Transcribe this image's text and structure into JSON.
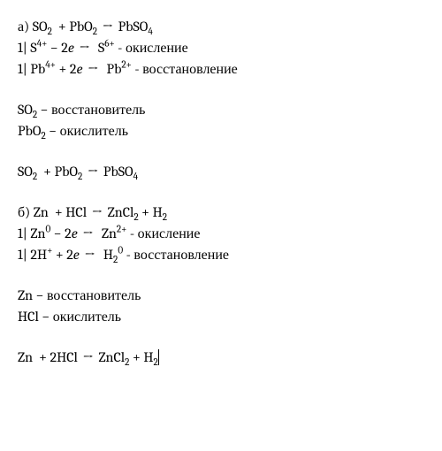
{
  "font_family": "Cambria, Georgia, serif",
  "font_size_pt": 12,
  "text_color": "#000000",
  "background_color": "#ffffff",
  "symbols": {
    "arrow": "→",
    "minus": "−",
    "plus": "+",
    "pipe": "|",
    "electron": "e"
  },
  "problems": [
    {
      "label": "а)",
      "equation_unbalanced": {
        "reactants": [
          {
            "formula": "SO",
            "sub": "2"
          },
          {
            "formula": "PbO",
            "sub": "2"
          }
        ],
        "products": [
          {
            "formula": "PbSO",
            "sub": "4"
          }
        ]
      },
      "half_reactions": [
        {
          "coef": "1",
          "left": {
            "element": "S",
            "charge": "4+"
          },
          "op": "−",
          "e_count": "2",
          "right": {
            "element": "S",
            "charge": "6+"
          },
          "process": "окисление"
        },
        {
          "coef": "1",
          "left": {
            "element": "Pb",
            "charge": "4+"
          },
          "op": "+",
          "e_count": "2",
          "right": {
            "element": "Pb",
            "charge": "2+"
          },
          "process": "восстановление"
        }
      ],
      "reducer": {
        "formula": "SO",
        "sub": "2",
        "role": "восстановитель"
      },
      "oxidizer": {
        "formula": "PbO",
        "sub": "2",
        "role": "окислитель"
      },
      "equation_balanced": {
        "reactants": [
          {
            "coef": "",
            "formula": "SO",
            "sub": "2"
          },
          {
            "coef": "",
            "formula": "PbO",
            "sub": "2"
          }
        ],
        "products": [
          {
            "coef": "",
            "formula": "PbSO",
            "sub": "4"
          }
        ]
      }
    },
    {
      "label": "б)",
      "equation_unbalanced": {
        "reactants": [
          {
            "formula": "Zn"
          },
          {
            "formula": "HCl"
          }
        ],
        "products": [
          {
            "formula": "ZnCl",
            "sub": "2"
          },
          {
            "formula": "H",
            "sub": "2"
          }
        ]
      },
      "half_reactions": [
        {
          "coef": "1",
          "left": {
            "element": "Zn",
            "charge": "0"
          },
          "op": "−",
          "e_count": "2",
          "right": {
            "element": "Zn",
            "charge": "2+"
          },
          "process": "окисление"
        },
        {
          "coef": "1",
          "left": {
            "element": "2H",
            "charge": "+"
          },
          "op": "+",
          "e_count": "2",
          "right": {
            "element": "H",
            "sub": "2",
            "charge": "0"
          },
          "process": "восстановление"
        }
      ],
      "reducer": {
        "formula": "Zn",
        "role": "восстановитель"
      },
      "oxidizer": {
        "formula": "HCl",
        "role": "окислитель"
      },
      "equation_balanced": {
        "reactants": [
          {
            "coef": "",
            "formula": "Zn"
          },
          {
            "coef": "2",
            "formula": "HCl"
          }
        ],
        "products": [
          {
            "coef": "",
            "formula": "ZnCl",
            "sub": "2"
          },
          {
            "coef": "",
            "formula": "H",
            "sub": "2"
          }
        ]
      }
    }
  ]
}
